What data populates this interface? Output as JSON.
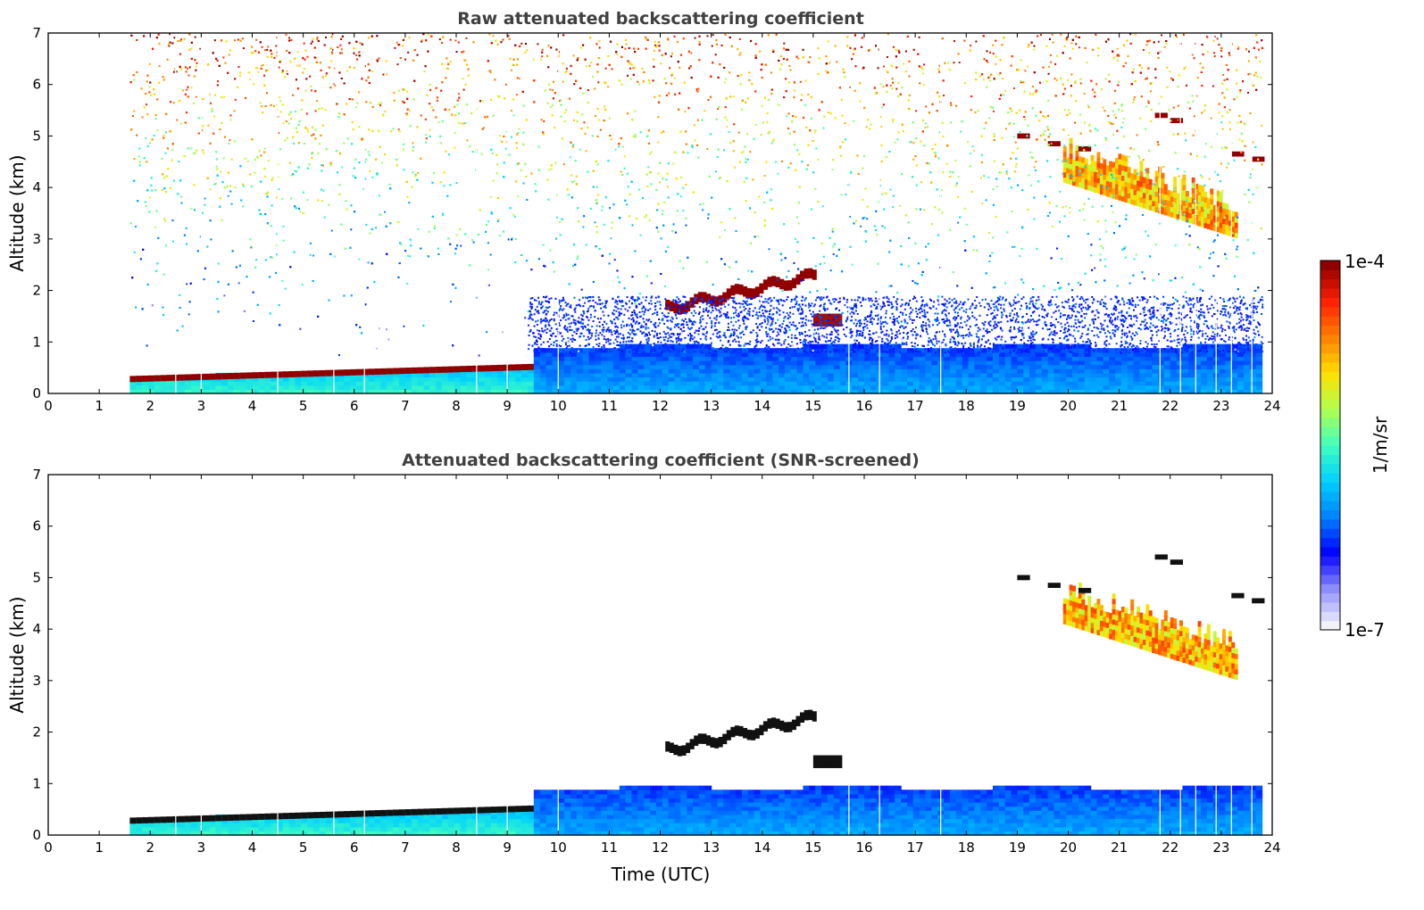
{
  "chart_data": [
    {
      "type": "heatmap",
      "title": "Raw attenuated backscattering coefficient",
      "xlabel": "",
      "ylabel": "Altitude (km)",
      "xlim": [
        0,
        24
      ],
      "ylim": [
        0,
        7
      ],
      "x_ticks": [
        "0",
        "1",
        "2",
        "3",
        "4",
        "5",
        "6",
        "7",
        "8",
        "9",
        "10",
        "11",
        "12",
        "13",
        "14",
        "15",
        "16",
        "17",
        "18",
        "19",
        "20",
        "21",
        "22",
        "23",
        "24"
      ],
      "y_ticks": [
        "0",
        "1",
        "2",
        "3",
        "4",
        "5",
        "6",
        "7"
      ],
      "data_start_time": 1.6,
      "data_end_time": 23.8,
      "features": [
        {
          "name": "aerosol-layer-top-early",
          "time": [
            1.6,
            9.3
          ],
          "altitude": [
            0.25,
            0.55
          ],
          "level": "high"
        },
        {
          "name": "boundary-layer",
          "time": [
            9.4,
            23.8
          ],
          "altitude": [
            0,
            0.9
          ],
          "level": "low"
        },
        {
          "name": "mid-cloud",
          "time": [
            12.1,
            15.0
          ],
          "altitude": [
            1.5,
            2.25
          ],
          "level": "high"
        },
        {
          "name": "high-cloud-layer",
          "time": [
            19.0,
            23.8
          ],
          "altitude": [
            2.9,
            5.0
          ],
          "level": "medium-high"
        }
      ]
    },
    {
      "type": "heatmap",
      "title": "Attenuated backscattering coefficient (SNR-screened)",
      "xlabel": "Time (UTC)",
      "ylabel": "Altitude (km)",
      "xlim": [
        0,
        24
      ],
      "ylim": [
        0,
        7
      ],
      "x_ticks": [
        "0",
        "1",
        "2",
        "3",
        "4",
        "5",
        "6",
        "7",
        "8",
        "9",
        "10",
        "11",
        "12",
        "13",
        "14",
        "15",
        "16",
        "17",
        "18",
        "19",
        "20",
        "21",
        "22",
        "23",
        "24"
      ],
      "y_ticks": [
        "0",
        "1",
        "2",
        "3",
        "4",
        "5",
        "6",
        "7"
      ],
      "data_start_time": 1.6,
      "data_end_time": 23.8
    }
  ],
  "colorbar": {
    "label": "1/m/sr",
    "max_label": "1e-4",
    "min_label": "1e-7",
    "colors": [
      "#f2f2fa",
      "#9090ff",
      "#0000ff",
      "#0080ff",
      "#00d0ff",
      "#40ffc0",
      "#b0ff50",
      "#ffe000",
      "#ff8000",
      "#ff2000",
      "#900000"
    ]
  }
}
